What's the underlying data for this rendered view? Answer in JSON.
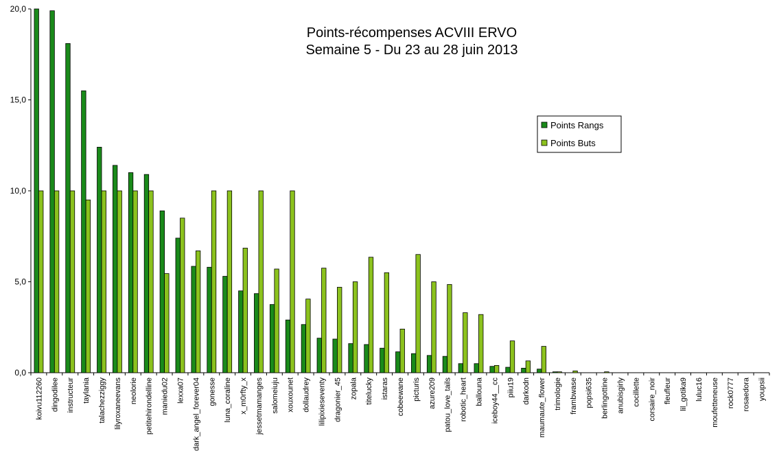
{
  "chart_data": {
    "type": "bar",
    "title": "Points-récompenses ACVIII ERVO",
    "subtitle": "Semaine 5 - Du 23 au 28 juin 2013",
    "xlabel": "",
    "ylabel": "",
    "ylim": [
      0,
      20
    ],
    "yticks": [
      "0,0",
      "5,0",
      "10,0",
      "15,0",
      "20,0"
    ],
    "grid": false,
    "legend_position": "right",
    "colors": {
      "Points Rangs": "#1a8a1a",
      "Points Buts": "#8cc21e"
    },
    "categories": [
      "koivu112260",
      "dingodilee",
      "instructeur",
      "taylania",
      "talachezziggy",
      "lilyroxaneevans",
      "neolorie",
      "petitehirondelline",
      "maniedu02",
      "lexxa07",
      "dark_angel_forever04",
      "gonesse",
      "luna_coraline",
      "x_m0rfty_x",
      "jessetmamanges",
      "salomeiuju",
      "xouxounet",
      "dollaudrey",
      "lilipixieseventy",
      "dragonier_45",
      "zopala",
      "titelucky",
      "istaras",
      "cobeewane",
      "picturis",
      "azure209",
      "patou_love_tails",
      "robotic_heart",
      "ballouna",
      "iceboy44__cc",
      "piiu19",
      "darkodn",
      "maumaute_flower",
      "trimologie",
      "frambwase",
      "popsi635",
      "berlingottine",
      "anubisgirly",
      "cocillette",
      "corsaire_noir",
      "fleufleur",
      "lil_gotika9",
      "luluc16",
      "moufetteneuse",
      "rock0777",
      "rosaedora",
      "youpsii"
    ],
    "series": [
      {
        "name": "Points Rangs",
        "values": [
          20.0,
          19.9,
          18.1,
          15.5,
          12.4,
          11.4,
          11.0,
          10.9,
          8.9,
          7.4,
          5.85,
          5.8,
          5.3,
          4.5,
          4.35,
          3.75,
          2.9,
          2.65,
          1.9,
          1.85,
          1.6,
          1.55,
          1.35,
          1.15,
          1.05,
          0.95,
          0.9,
          0.5,
          0.5,
          0.35,
          0.3,
          0.25,
          0.2,
          0.05,
          0.0,
          0.0,
          0.0,
          0.0,
          0.0,
          0.0,
          0.0,
          0.0,
          0.0,
          0.0,
          0.0,
          0.0,
          0.0
        ]
      },
      {
        "name": "Points Buts",
        "values": [
          10.0,
          10.0,
          10.0,
          9.5,
          10.0,
          10.0,
          10.0,
          10.0,
          5.45,
          8.5,
          6.7,
          10.0,
          10.0,
          6.85,
          10.0,
          5.7,
          10.0,
          4.05,
          5.75,
          4.7,
          5.0,
          6.35,
          5.5,
          2.4,
          6.5,
          5.0,
          4.85,
          3.3,
          3.2,
          0.4,
          1.75,
          0.65,
          1.45,
          0.05,
          0.1,
          0.0,
          0.05,
          0.0,
          0.0,
          0.0,
          0.0,
          0.0,
          0.0,
          0.0,
          0.0,
          0.0,
          0.0
        ]
      }
    ]
  }
}
